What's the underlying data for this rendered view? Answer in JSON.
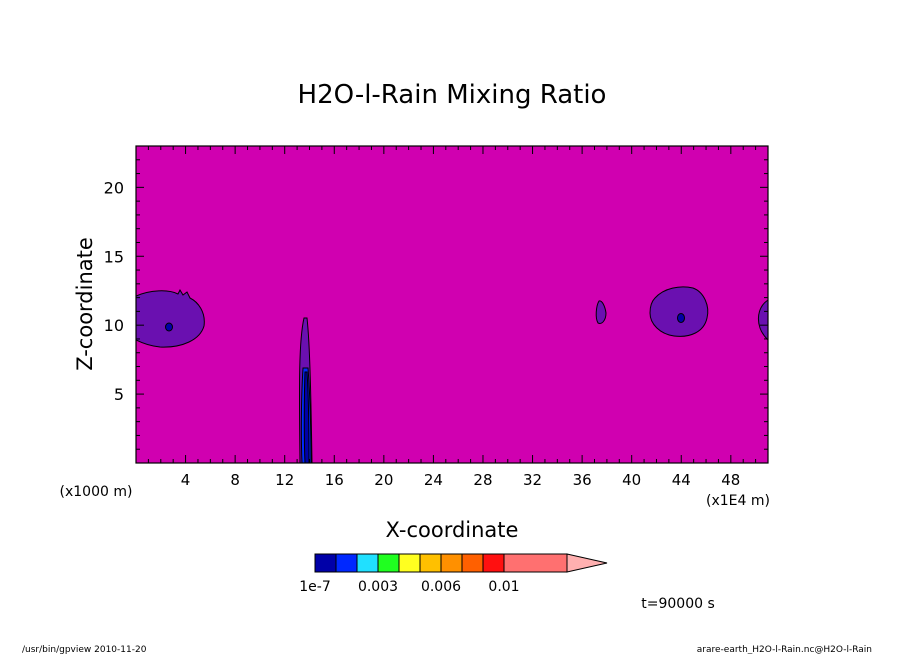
{
  "chart_data": {
    "type": "heatmap",
    "title": "H2O-l-Rain Mixing Ratio",
    "xlabel": "X-coordinate",
    "ylabel": "Z-coordinate",
    "x_unit": "(x1E4 m)",
    "y_unit": "(x1000 m)",
    "xlim": [
      0,
      51
    ],
    "ylim": [
      0,
      23
    ],
    "x_ticks": [
      4,
      8,
      12,
      16,
      20,
      24,
      28,
      32,
      36,
      40,
      44,
      48
    ],
    "y_ticks": [
      5,
      10,
      15,
      20
    ],
    "background_color": "#d000b0",
    "colorbar": {
      "colors": [
        "#0000a8",
        "#0028ff",
        "#20e0ff",
        "#20ff20",
        "#ffff20",
        "#ffc000",
        "#ff9000",
        "#ff6000",
        "#ff1010",
        "#ff7070"
      ],
      "extend_color": "#ffb0b0",
      "tick_labels": [
        "1e-7",
        "0.003",
        "0.006",
        "0.01"
      ]
    },
    "features": [
      {
        "name": "left cloud",
        "x_center": 2.5,
        "z_center": 10,
        "level": "below 1e-7"
      },
      {
        "name": "rain shaft",
        "x_center": 13.8,
        "z_range": [
          0,
          10.5
        ],
        "level": "1e-7 to 0.003"
      },
      {
        "name": "small cloud",
        "x_center": 37.6,
        "z_center": 10.8,
        "level": "below 1e-7"
      },
      {
        "name": "right cloud",
        "x_center": 44.2,
        "z_center": 10.7,
        "level": "below 1e-7"
      }
    ],
    "time_label": "t=90000 s"
  },
  "footer": {
    "left": "/usr/bin/gpview  2010-11-20",
    "right": "arare-earth_H2O-l-Rain.nc@H2O-l-Rain"
  }
}
